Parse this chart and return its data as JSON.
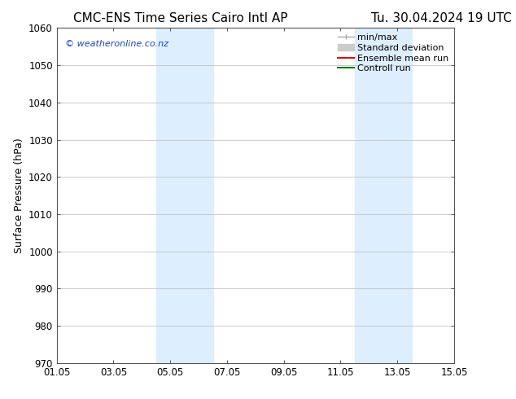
{
  "title_left": "CMC-ENS Time Series Cairo Intl AP",
  "title_right": "Tu. 30.04.2024 19 UTC",
  "ylabel": "Surface Pressure (hPa)",
  "xlim_num": [
    0,
    14
  ],
  "ylim": [
    970,
    1060
  ],
  "yticks": [
    970,
    980,
    990,
    1000,
    1010,
    1020,
    1030,
    1040,
    1050,
    1060
  ],
  "xtick_positions": [
    0,
    2,
    4,
    6,
    8,
    10,
    12,
    14
  ],
  "xtick_labels": [
    "01.05",
    "03.05",
    "05.05",
    "07.05",
    "09.05",
    "11.05",
    "13.05",
    "15.05"
  ],
  "shaded_regions": [
    {
      "xmin": 3.5,
      "xmax": 5.5,
      "color": "#ddeeff"
    },
    {
      "xmin": 10.5,
      "xmax": 12.5,
      "color": "#ddeeff"
    }
  ],
  "watermark_text": "© weatheronline.co.nz",
  "watermark_color": "#1a44bb",
  "legend_entries": [
    {
      "label": "min/max",
      "color": "#aaaaaa",
      "lw": 1.0
    },
    {
      "label": "Standard deviation",
      "color": "#cccccc",
      "lw": 5
    },
    {
      "label": "Ensemble mean run",
      "color": "#dd0000",
      "lw": 1.5
    },
    {
      "label": "Controll run",
      "color": "#007700",
      "lw": 1.5
    }
  ],
  "bg_color": "#ffffff",
  "grid_color": "#bbbbbb",
  "title_fontsize": 11,
  "tick_fontsize": 8.5,
  "ylabel_fontsize": 9,
  "legend_fontsize": 8
}
